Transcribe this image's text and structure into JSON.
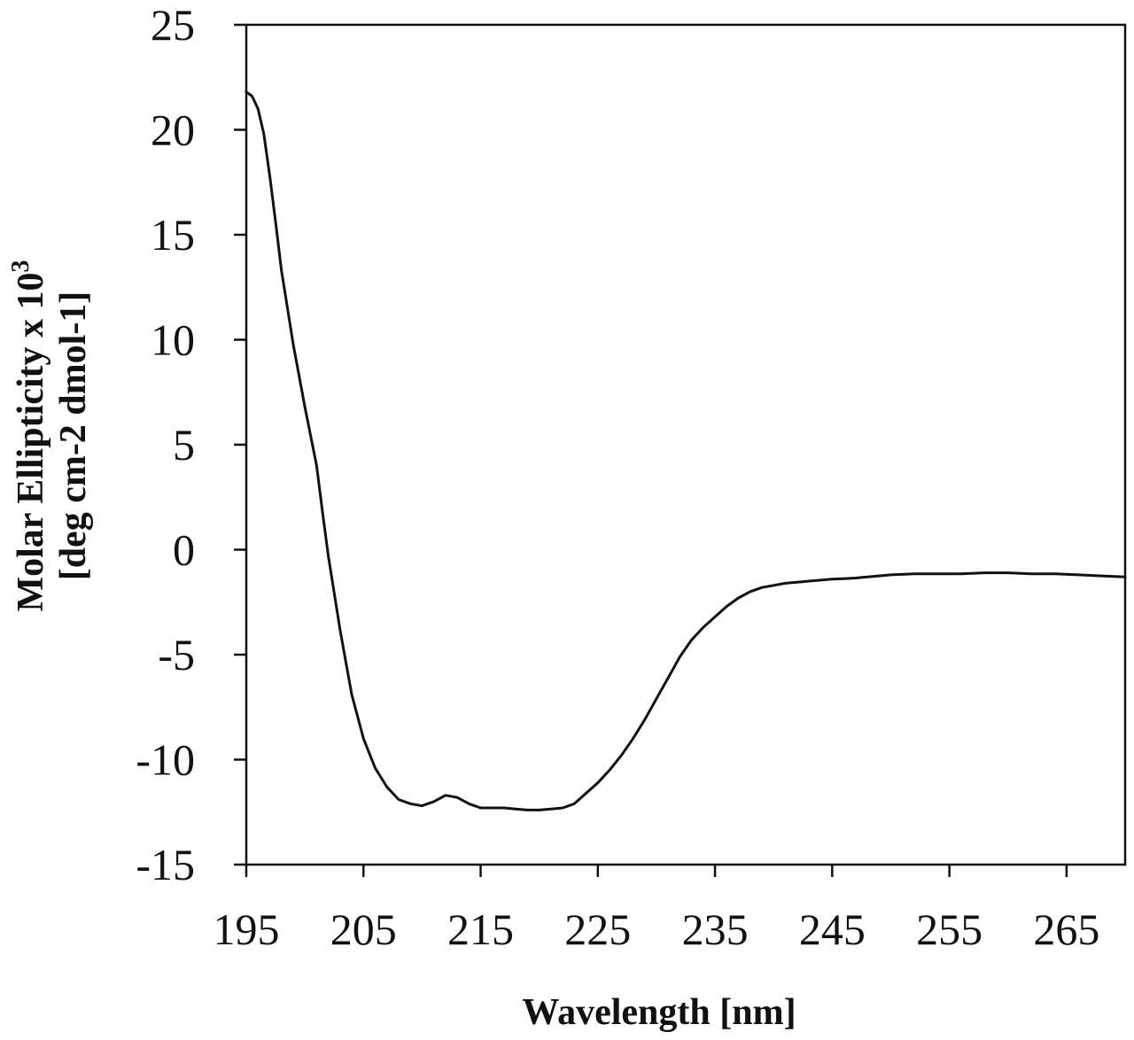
{
  "chart_data": {
    "type": "line",
    "title": "",
    "xlabel": "Wavelength [nm]",
    "ylabel_line1": "Molar Ellipticity x 10",
    "ylabel_superscript": "3",
    "ylabel_line2": "[deg cm-2 dmol-1]",
    "xlim": [
      195,
      270
    ],
    "ylim": [
      -15,
      25
    ],
    "xticks": [
      195,
      205,
      215,
      225,
      235,
      245,
      255,
      265
    ],
    "xtick_labels": [
      "195",
      "205",
      "215",
      "225",
      "235",
      "245",
      "255",
      "265"
    ],
    "yticks": [
      -15,
      -10,
      -5,
      0,
      5,
      10,
      15,
      20,
      25
    ],
    "ytick_labels": [
      "-15",
      "-10",
      "-5",
      "0",
      "5",
      "10",
      "15",
      "20",
      "25"
    ],
    "grid": false,
    "line_color": "#111111",
    "series": [
      {
        "x": [
          195,
          195.5,
          196,
          196.5,
          197,
          197.5,
          198,
          199,
          200,
          201,
          201.5,
          202,
          203,
          204,
          205,
          206,
          207,
          208,
          209,
          210,
          211,
          212,
          213,
          214,
          215,
          216,
          217,
          218,
          219,
          220,
          221,
          222,
          223,
          224,
          225,
          226,
          227,
          228,
          229,
          230,
          231,
          232,
          233,
          234,
          235,
          236,
          237,
          238,
          239,
          240,
          241,
          242,
          243,
          244,
          245,
          246,
          247,
          248,
          249,
          250,
          252,
          254,
          256,
          258,
          259,
          260,
          262,
          264,
          266,
          268,
          270
        ],
        "y": [
          21.8,
          21.6,
          21.0,
          19.8,
          17.8,
          15.6,
          13.3,
          9.8,
          6.8,
          4.0,
          1.8,
          -0.3,
          -3.8,
          -6.9,
          -9.0,
          -10.4,
          -11.3,
          -11.9,
          -12.1,
          -12.2,
          -12.0,
          -11.7,
          -11.8,
          -12.1,
          -12.3,
          -12.3,
          -12.3,
          -12.35,
          -12.4,
          -12.4,
          -12.35,
          -12.3,
          -12.1,
          -11.6,
          -11.1,
          -10.5,
          -9.8,
          -9.0,
          -8.1,
          -7.1,
          -6.1,
          -5.1,
          -4.3,
          -3.7,
          -3.2,
          -2.7,
          -2.3,
          -2.0,
          -1.8,
          -1.7,
          -1.6,
          -1.55,
          -1.5,
          -1.45,
          -1.4,
          -1.38,
          -1.35,
          -1.3,
          -1.25,
          -1.2,
          -1.15,
          -1.15,
          -1.15,
          -1.1,
          -1.1,
          -1.1,
          -1.15,
          -1.15,
          -1.2,
          -1.25,
          -1.3
        ]
      }
    ]
  }
}
